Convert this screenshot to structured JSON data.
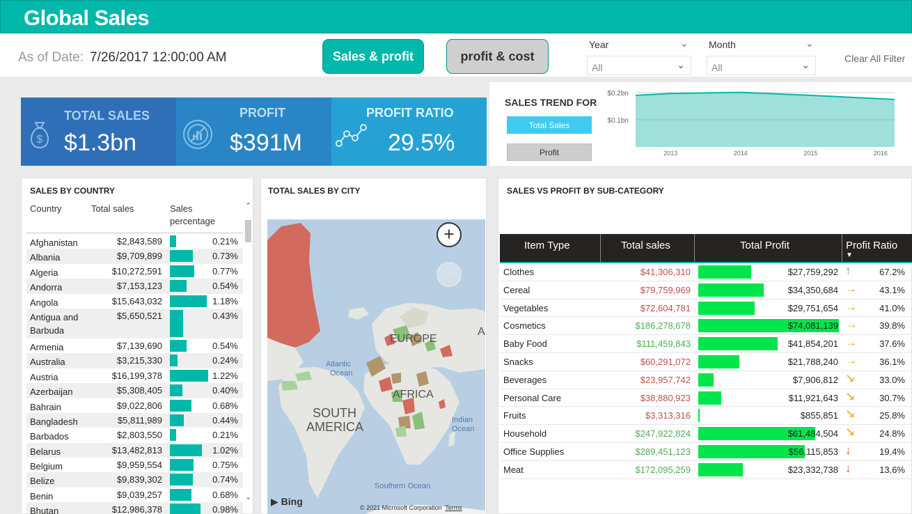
{
  "header": {
    "title": "Global Sales"
  },
  "filters": {
    "as_of_label": "As of Date:",
    "as_of_value": "7/26/2017 12:00:00 AM",
    "nav_buttons": [
      "Sales & profit",
      "profit & cost"
    ],
    "year_label": "Year",
    "year_value": "All",
    "month_label": "Month",
    "month_value": "All",
    "clear_label": "Clear All Filter"
  },
  "kpis": {
    "total_sales_label": "TOTAL SALES",
    "total_sales_value": "$1.3bn",
    "profit_label": "PROFIT",
    "profit_value": "$391M",
    "profit_ratio_label": "PROFIT RATIO",
    "profit_ratio_value": "29.5%"
  },
  "trend": {
    "title": "SALES TREND FOR",
    "buttons": [
      "Total Sales",
      "Profit"
    ],
    "y_ticks": [
      "$0.2bn",
      "$0.1bn"
    ],
    "x_ticks": [
      "2013",
      "2014",
      "2015",
      "2016"
    ],
    "colors": {
      "area": "#9fe0da",
      "line": "#01b8aa"
    },
    "chart_data": {
      "type": "area",
      "x": [
        2012.5,
        2013,
        2014,
        2015,
        2016.2
      ],
      "values": [
        0.19,
        0.197,
        0.201,
        0.19,
        0.175
      ],
      "ylim": [
        0.0,
        0.218
      ],
      "y_unit": "bn"
    }
  },
  "country_table": {
    "title": "SALES BY COUNTRY",
    "columns": [
      "Country",
      "Total sales",
      "Sales percentage"
    ],
    "rows": [
      {
        "country": "Afghanistan",
        "sales": "$2,843,589",
        "pct": "0.21%",
        "pct_value": 0.21
      },
      {
        "country": "Albania",
        "sales": "$9,709,899",
        "pct": "0.73%",
        "pct_value": 0.73
      },
      {
        "country": "Algeria",
        "sales": "$10,272,591",
        "pct": "0.77%",
        "pct_value": 0.77
      },
      {
        "country": "Andorra",
        "sales": "$7,153,123",
        "pct": "0.54%",
        "pct_value": 0.54
      },
      {
        "country": "Angola",
        "sales": "$15,643,032",
        "pct": "1.18%",
        "pct_value": 1.18
      },
      {
        "country": "Antigua and Barbuda",
        "sales": "$5,650,521",
        "pct": "0.43%",
        "pct_value": 0.43
      },
      {
        "country": "Armenia",
        "sales": "$7,139,690",
        "pct": "0.54%",
        "pct_value": 0.54
      },
      {
        "country": "Australia",
        "sales": "$3,215,330",
        "pct": "0.24%",
        "pct_value": 0.24
      },
      {
        "country": "Austria",
        "sales": "$16,199,378",
        "pct": "1.22%",
        "pct_value": 1.22
      },
      {
        "country": "Azerbaijan",
        "sales": "$5,308,405",
        "pct": "0.40%",
        "pct_value": 0.4
      },
      {
        "country": "Bahrain",
        "sales": "$9,022,806",
        "pct": "0.68%",
        "pct_value": 0.68
      },
      {
        "country": "Bangladesh",
        "sales": "$5,811,989",
        "pct": "0.44%",
        "pct_value": 0.44
      },
      {
        "country": "Barbados",
        "sales": "$2,803,550",
        "pct": "0.21%",
        "pct_value": 0.21
      },
      {
        "country": "Belarus",
        "sales": "$13,482,813",
        "pct": "1.02%",
        "pct_value": 1.02
      },
      {
        "country": "Belgium",
        "sales": "$9,959,554",
        "pct": "0.75%",
        "pct_value": 0.75
      },
      {
        "country": "Belize",
        "sales": "$9,839,302",
        "pct": "0.74%",
        "pct_value": 0.74
      },
      {
        "country": "Benin",
        "sales": "$9,039,257",
        "pct": "0.68%",
        "pct_value": 0.68
      },
      {
        "country": "Bhutan",
        "sales": "$12,986,378",
        "pct": "0.98%",
        "pct_value": 0.98
      }
    ]
  },
  "map": {
    "title": "TOTAL SALES BY CITY",
    "labels": [
      "EUROPE",
      "AFRICA",
      "SOUTH",
      "AMERICA",
      "Atlantic",
      "Ocean",
      "Indian",
      "Ocean",
      "Southern Ocean",
      "A"
    ],
    "bing": "Bing",
    "copyright": "© 2021 Microsoft Corporation",
    "terms": "Terms",
    "zoom_in": "+",
    "zoom_out": "−"
  },
  "subcategory_table": {
    "title": "SALES VS PROFIT BY SUB-CATEGORY",
    "columns": [
      "Item Type",
      "Total sales",
      "Total Profit",
      "Profit Ratio"
    ],
    "colors": {
      "sales_high": "#4caf50",
      "sales_low": "#c0504d",
      "bar": "#00e54b",
      "arrow_up": "#4caf50",
      "arrow_side": "#f5a623",
      "arrow_diag": "#f5b041",
      "arrow_down": "#e8572a"
    },
    "rows": [
      {
        "item": "Clothes",
        "sales": "$41,306,310",
        "sales_state": "low",
        "profit": "$27,759,292",
        "profit_value": 27759292,
        "arrow": "up",
        "ratio": "67.2%"
      },
      {
        "item": "Cereal",
        "sales": "$79,759,969",
        "sales_state": "low",
        "profit": "$34,350,684",
        "profit_value": 34350684,
        "arrow": "right",
        "ratio": "43.1%"
      },
      {
        "item": "Vegetables",
        "sales": "$72,604,781",
        "sales_state": "low",
        "profit": "$29,751,654",
        "profit_value": 29751654,
        "arrow": "right",
        "ratio": "41.0%"
      },
      {
        "item": "Cosmetics",
        "sales": "$186,278,678",
        "sales_state": "high",
        "profit": "$74,081,139",
        "profit_value": 74081139,
        "arrow": "right",
        "ratio": "39.8%"
      },
      {
        "item": "Baby Food",
        "sales": "$111,459,843",
        "sales_state": "high",
        "profit": "$41,854,201",
        "profit_value": 41854201,
        "arrow": "right",
        "ratio": "37.6%"
      },
      {
        "item": "Snacks",
        "sales": "$60,291,072",
        "sales_state": "low",
        "profit": "$21,788,240",
        "profit_value": 21788240,
        "arrow": "right",
        "ratio": "36.1%"
      },
      {
        "item": "Beverages",
        "sales": "$23,957,742",
        "sales_state": "low",
        "profit": "$7,906,812",
        "profit_value": 7906812,
        "arrow": "down-right",
        "ratio": "33.0%"
      },
      {
        "item": "Personal Care",
        "sales": "$38,880,923",
        "sales_state": "low",
        "profit": "$11,921,643",
        "profit_value": 11921643,
        "arrow": "down-right",
        "ratio": "30.7%"
      },
      {
        "item": "Fruits",
        "sales": "$3,313,316",
        "sales_state": "low",
        "profit": "$855,851",
        "profit_value": 855851,
        "arrow": "down-right",
        "ratio": "25.8%"
      },
      {
        "item": "Household",
        "sales": "$247,922,824",
        "sales_state": "high",
        "profit": "$61,484,504",
        "profit_value": 61484504,
        "arrow": "down-right",
        "ratio": "24.8%"
      },
      {
        "item": "Office Supplies",
        "sales": "$289,451,123",
        "sales_state": "high",
        "profit": "$56,115,853",
        "profit_value": 56115853,
        "arrow": "down",
        "ratio": "19.4%"
      },
      {
        "item": "Meat",
        "sales": "$172,095,259",
        "sales_state": "high",
        "profit": "$23,332,738",
        "profit_value": 23332738,
        "arrow": "down",
        "ratio": "13.6%"
      }
    ]
  }
}
